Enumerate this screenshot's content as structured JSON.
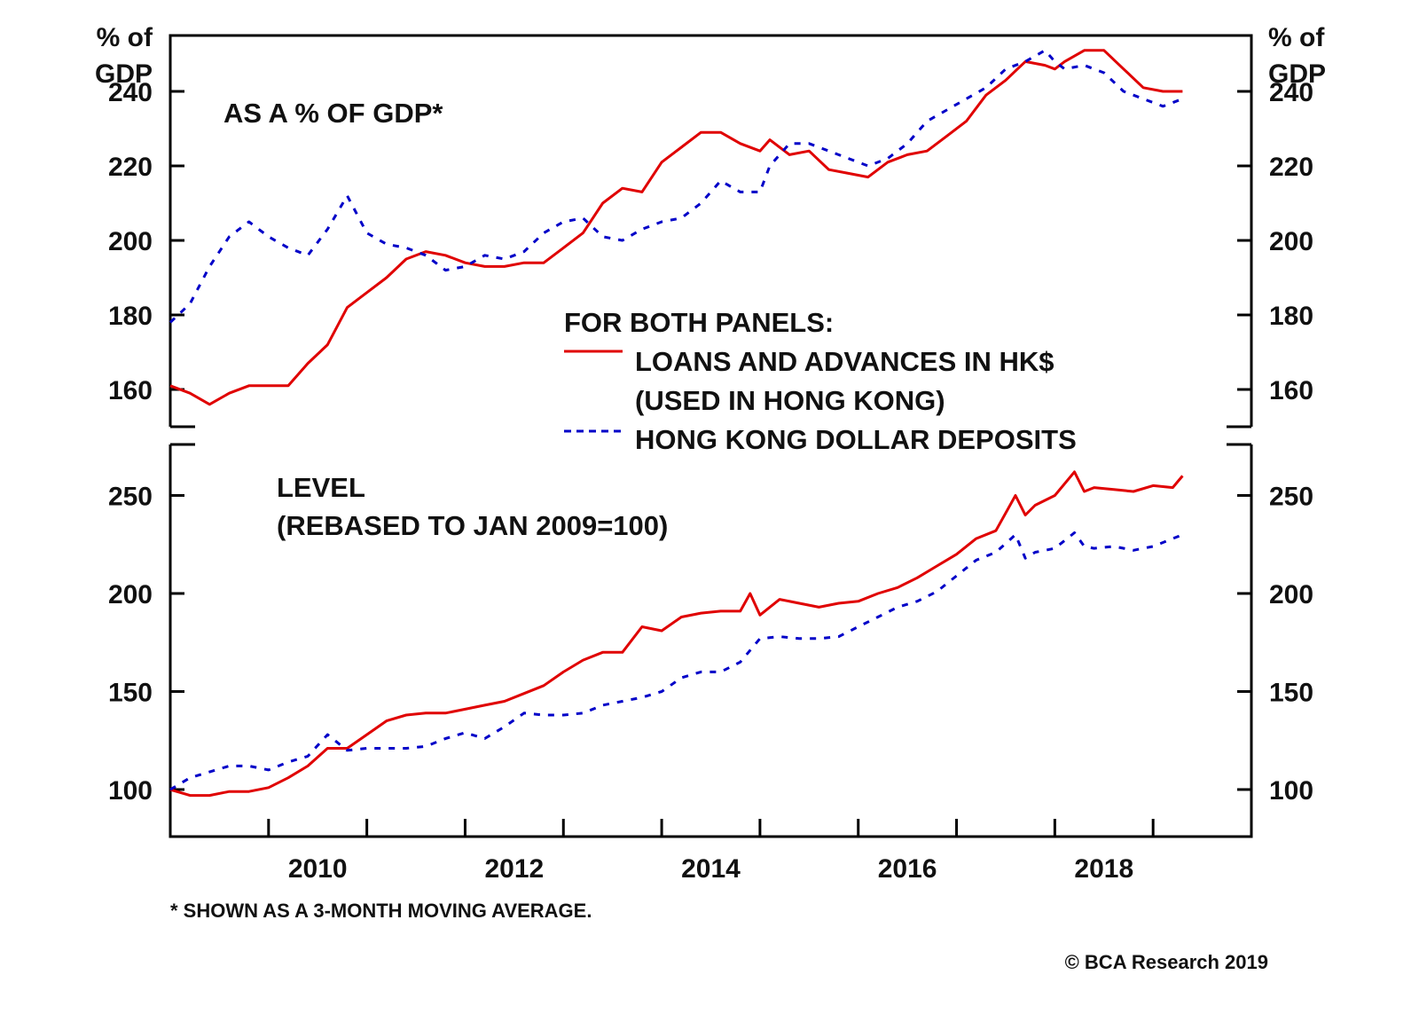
{
  "chart_data": [
    {
      "panel": "top",
      "type": "line",
      "title": "AS A % OF GDP*",
      "ylabel_left": [
        "% of",
        "GDP"
      ],
      "ylabel_right": [
        "% of",
        "GDP"
      ],
      "ylim": [
        150,
        255
      ],
      "yticks": [
        160,
        180,
        200,
        220,
        240
      ],
      "grid": false,
      "series": [
        {
          "name": "LOANS AND ADVANCES IN HK$ (USED IN HONG KONG)",
          "color": "#e00000",
          "style": "solid",
          "x": [
            2009.0,
            2009.2,
            2009.4,
            2009.6,
            2009.8,
            2010.0,
            2010.2,
            2010.4,
            2010.6,
            2010.8,
            2011.0,
            2011.2,
            2011.4,
            2011.6,
            2011.8,
            2012.0,
            2012.2,
            2012.4,
            2012.6,
            2012.8,
            2013.0,
            2013.2,
            2013.4,
            2013.6,
            2013.8,
            2014.0,
            2014.2,
            2014.4,
            2014.6,
            2014.8,
            2015.0,
            2015.1,
            2015.3,
            2015.5,
            2015.7,
            2015.9,
            2016.1,
            2016.3,
            2016.5,
            2016.7,
            2016.9,
            2017.1,
            2017.3,
            2017.5,
            2017.7,
            2017.9,
            2018.0,
            2018.1,
            2018.3,
            2018.5,
            2018.7,
            2018.9,
            2019.1,
            2019.3
          ],
          "values": [
            161,
            159,
            156,
            159,
            161,
            161,
            161,
            167,
            172,
            182,
            186,
            190,
            195,
            197,
            196,
            194,
            193,
            193,
            194,
            194,
            198,
            202,
            210,
            214,
            213,
            221,
            225,
            229,
            229,
            226,
            224,
            227,
            223,
            224,
            219,
            218,
            217,
            221,
            223,
            224,
            228,
            232,
            239,
            243,
            248,
            247,
            246,
            248,
            251,
            251,
            246,
            241,
            240,
            240
          ]
        },
        {
          "name": "HONG KONG DOLLAR DEPOSITS",
          "color": "#0000c8",
          "style": "dashed",
          "x": [
            2009.0,
            2009.2,
            2009.4,
            2009.6,
            2009.8,
            2010.0,
            2010.2,
            2010.4,
            2010.6,
            2010.8,
            2011.0,
            2011.2,
            2011.4,
            2011.6,
            2011.8,
            2012.0,
            2012.2,
            2012.4,
            2012.6,
            2012.8,
            2013.0,
            2013.2,
            2013.4,
            2013.6,
            2013.8,
            2014.0,
            2014.2,
            2014.4,
            2014.6,
            2014.8,
            2015.0,
            2015.1,
            2015.3,
            2015.5,
            2015.7,
            2015.9,
            2016.1,
            2016.3,
            2016.5,
            2016.7,
            2016.9,
            2017.1,
            2017.3,
            2017.5,
            2017.7,
            2017.9,
            2018.0,
            2018.1,
            2018.3,
            2018.5,
            2018.7,
            2018.9,
            2019.1,
            2019.3
          ],
          "values": [
            178,
            183,
            193,
            201,
            205,
            201,
            198,
            196,
            203,
            212,
            202,
            199,
            198,
            196,
            192,
            193,
            196,
            195,
            197,
            202,
            205,
            206,
            201,
            200,
            203,
            205,
            206,
            210,
            216,
            213,
            213,
            220,
            226,
            226,
            224,
            222,
            220,
            222,
            226,
            232,
            235,
            238,
            241,
            246,
            248,
            251,
            248,
            246,
            247,
            245,
            240,
            238,
            236,
            238
          ]
        }
      ]
    },
    {
      "panel": "bottom",
      "type": "line",
      "title": "LEVEL (REBASED TO JAN 2009=100)",
      "ylim": [
        76,
        276
      ],
      "yticks": [
        100,
        150,
        200,
        250
      ],
      "grid": false,
      "series": [
        {
          "name": "LOANS AND ADVANCES IN HK$ (USED IN HONG KONG)",
          "color": "#e00000",
          "style": "solid",
          "x": [
            2009.0,
            2009.2,
            2009.4,
            2009.6,
            2009.8,
            2010.0,
            2010.2,
            2010.4,
            2010.6,
            2010.8,
            2011.0,
            2011.2,
            2011.4,
            2011.6,
            2011.8,
            2012.0,
            2012.2,
            2012.4,
            2012.6,
            2012.8,
            2013.0,
            2013.2,
            2013.4,
            2013.6,
            2013.8,
            2014.0,
            2014.2,
            2014.4,
            2014.6,
            2014.8,
            2014.9,
            2015.0,
            2015.2,
            2015.4,
            2015.6,
            2015.8,
            2016.0,
            2016.2,
            2016.4,
            2016.6,
            2016.8,
            2017.0,
            2017.2,
            2017.4,
            2017.6,
            2017.7,
            2017.8,
            2018.0,
            2018.2,
            2018.3,
            2018.4,
            2018.6,
            2018.8,
            2019.0,
            2019.2,
            2019.3
          ],
          "values": [
            100,
            97,
            97,
            99,
            99,
            101,
            106,
            112,
            121,
            121,
            128,
            135,
            138,
            139,
            139,
            141,
            143,
            145,
            149,
            153,
            160,
            166,
            170,
            170,
            183,
            181,
            188,
            190,
            191,
            191,
            200,
            189,
            197,
            195,
            193,
            195,
            196,
            200,
            203,
            208,
            214,
            220,
            228,
            232,
            250,
            240,
            245,
            250,
            262,
            252,
            254,
            253,
            252,
            255,
            254,
            260
          ]
        },
        {
          "name": "HONG KONG DOLLAR DEPOSITS",
          "color": "#0000c8",
          "style": "dashed",
          "x": [
            2009.0,
            2009.2,
            2009.4,
            2009.6,
            2009.8,
            2010.0,
            2010.2,
            2010.4,
            2010.6,
            2010.8,
            2011.0,
            2011.2,
            2011.4,
            2011.6,
            2011.8,
            2012.0,
            2012.2,
            2012.4,
            2012.6,
            2012.8,
            2013.0,
            2013.2,
            2013.4,
            2013.6,
            2013.8,
            2014.0,
            2014.2,
            2014.4,
            2014.6,
            2014.8,
            2015.0,
            2015.2,
            2015.4,
            2015.6,
            2015.8,
            2016.0,
            2016.2,
            2016.4,
            2016.6,
            2016.8,
            2017.0,
            2017.2,
            2017.4,
            2017.6,
            2017.7,
            2017.8,
            2018.0,
            2018.2,
            2018.3,
            2018.4,
            2018.6,
            2018.8,
            2019.0,
            2019.2,
            2019.3
          ],
          "values": [
            100,
            106,
            109,
            112,
            112,
            110,
            114,
            117,
            128,
            120,
            121,
            121,
            121,
            122,
            126,
            129,
            126,
            132,
            139,
            138,
            138,
            139,
            143,
            145,
            147,
            150,
            157,
            160,
            160,
            165,
            177,
            178,
            177,
            177,
            178,
            183,
            188,
            193,
            196,
            201,
            209,
            217,
            221,
            230,
            218,
            221,
            223,
            231,
            224,
            223,
            224,
            222,
            224,
            228,
            230
          ]
        }
      ]
    }
  ],
  "x_axis": {
    "start": 2009.0,
    "end": 2020.0,
    "major_ticks": [
      2010,
      2011,
      2012,
      2013,
      2014,
      2015,
      2016,
      2017,
      2018,
      2019
    ],
    "labels": [
      "2010",
      "2012",
      "2014",
      "2016",
      "2018"
    ]
  },
  "legend": {
    "header": "FOR BOTH PANELS:",
    "items": [
      {
        "label_lines": [
          "LOANS AND ADVANCES IN HK$",
          "(USED IN HONG KONG)"
        ],
        "color": "#e00000",
        "style": "solid"
      },
      {
        "label_lines": [
          "HONG KONG DOLLAR DEPOSITS"
        ],
        "color": "#0000c8",
        "style": "dashed"
      }
    ]
  },
  "labels": {
    "top_title": "AS A % OF GDP*",
    "bottom_title_line1": "LEVEL",
    "bottom_title_line2": "(REBASED TO JAN 2009=100)",
    "unit_line1": "% of",
    "unit_line2": "GDP",
    "footnote": "* SHOWN AS A 3-MONTH MOVING AVERAGE.",
    "copyright": "© BCA Research 2019"
  }
}
